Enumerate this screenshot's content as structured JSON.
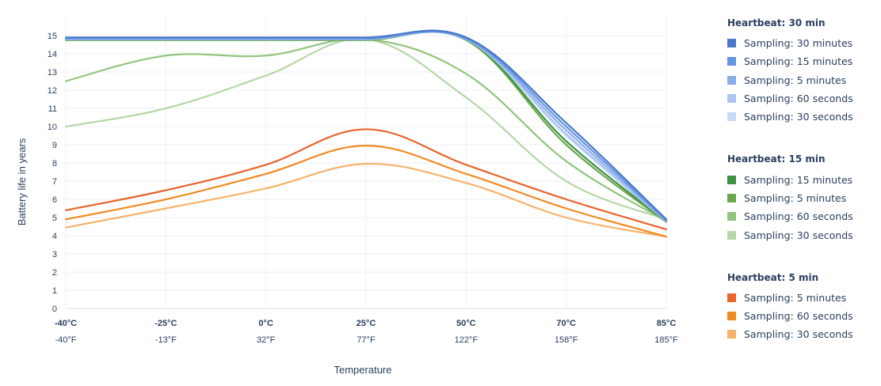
{
  "chart_data": {
    "type": "line",
    "xlabel": "Temperature",
    "ylabel": "Battery life in years",
    "ylim": [
      0,
      15
    ],
    "yticks": [
      0,
      1,
      2,
      3,
      4,
      5,
      6,
      7,
      8,
      9,
      10,
      11,
      12,
      13,
      14,
      15
    ],
    "categories": [
      "-40°C",
      "-25°C",
      "0°C",
      "25°C",
      "50°C",
      "70°C",
      "85°C"
    ],
    "categories_f": [
      "-40°F",
      "-13°F",
      "32°F",
      "77°F",
      "122°F",
      "158°F",
      "185°F"
    ],
    "grid": true,
    "legend_position": "right",
    "groups": [
      {
        "title": "Heartbeat: 30 min",
        "series": [
          {
            "name": "Sampling: 30 minutes",
            "color": "#4a78cc",
            "values": [
              14.9,
              14.9,
              14.9,
              14.9,
              14.9,
              10.2,
              4.9
            ]
          },
          {
            "name": "Sampling: 15 minutes",
            "color": "#6694e0",
            "values": [
              14.85,
              14.85,
              14.85,
              14.85,
              14.85,
              10.0,
              4.85
            ]
          },
          {
            "name": "Sampling: 5 minutes",
            "color": "#88aee8",
            "values": [
              14.8,
              14.8,
              14.8,
              14.8,
              14.8,
              9.8,
              4.8
            ]
          },
          {
            "name": "Sampling: 60 seconds",
            "color": "#a9c5f0",
            "values": [
              14.8,
              14.8,
              14.8,
              14.8,
              14.8,
              9.6,
              4.8
            ]
          },
          {
            "name": "Sampling: 30 seconds",
            "color": "#c8daf6",
            "values": [
              14.8,
              14.8,
              14.8,
              14.8,
              14.8,
              9.5,
              4.8
            ]
          }
        ]
      },
      {
        "title": "Heartbeat: 15 min",
        "series": [
          {
            "name": "Sampling: 15 minutes",
            "color": "#3d9140",
            "values": [
              14.8,
              14.8,
              14.8,
              14.8,
              14.8,
              9.2,
              4.8
            ]
          },
          {
            "name": "Sampling: 5 minutes",
            "color": "#6aa84f",
            "values": [
              14.75,
              14.75,
              14.75,
              14.75,
              14.75,
              9.0,
              4.75
            ]
          },
          {
            "name": "Sampling: 60 seconds",
            "color": "#93c47d",
            "values": [
              12.5,
              13.9,
              13.9,
              14.8,
              12.9,
              8.1,
              4.8
            ]
          },
          {
            "name": "Sampling: 30 seconds",
            "color": "#b6d7a8",
            "values": [
              10.0,
              11.0,
              12.8,
              14.8,
              11.6,
              7.0,
              4.9
            ]
          }
        ]
      },
      {
        "title": "Heartbeat: 5 min",
        "series": [
          {
            "name": "Sampling: 5 minutes",
            "color": "#e8642c",
            "values": [
              5.4,
              6.5,
              7.9,
              9.85,
              7.9,
              6.0,
              4.35
            ]
          },
          {
            "name": "Sampling: 60 seconds",
            "color": "#f08a24",
            "values": [
              4.9,
              6.0,
              7.4,
              8.95,
              7.4,
              5.5,
              3.95
            ]
          },
          {
            "name": "Sampling: 30 seconds",
            "color": "#f6b26b",
            "values": [
              4.45,
              5.5,
              6.6,
              7.95,
              6.9,
              5.0,
              3.95
            ]
          }
        ]
      }
    ]
  }
}
